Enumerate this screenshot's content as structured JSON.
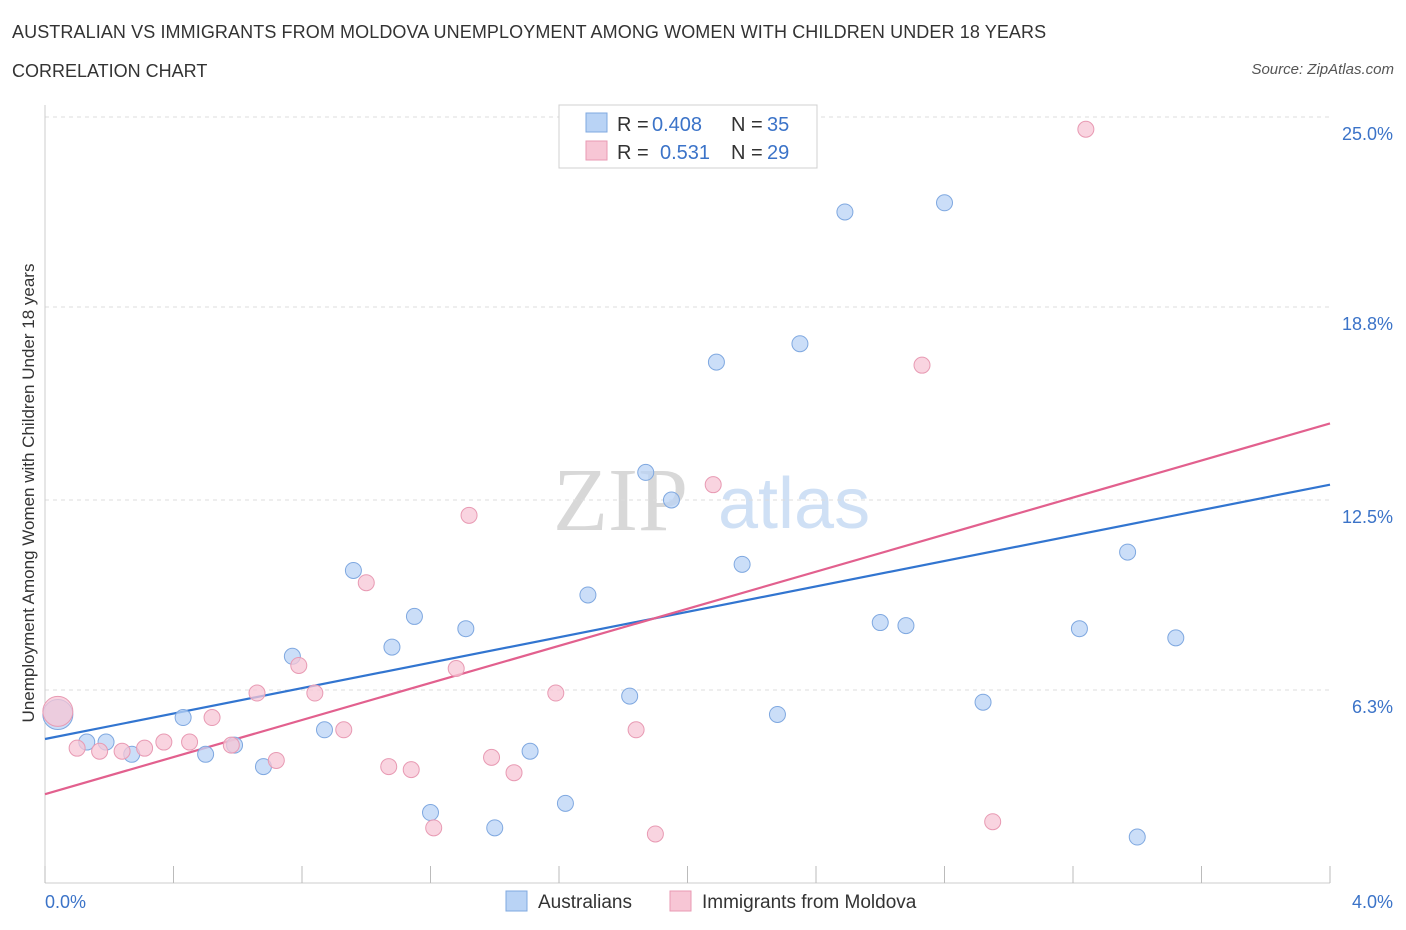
{
  "header": {
    "title": "AUSTRALIAN VS IMMIGRANTS FROM MOLDOVA UNEMPLOYMENT AMONG WOMEN WITH CHILDREN UNDER 18 YEARS",
    "subtitle": "CORRELATION CHART",
    "source": "Source: ZipAtlas.com"
  },
  "watermark": {
    "zip": "ZIP",
    "atlas": "atlas"
  },
  "legend": {
    "row1": {
      "r_label": "R =",
      "r_value": "0.408",
      "n_label": "N =",
      "n_value": "35"
    },
    "row2": {
      "r_label": "R =",
      "r_value": "0.531",
      "n_label": "N =",
      "n_value": "29"
    }
  },
  "bottom_legend": {
    "series1": "Australians",
    "series2": "Immigrants from Moldova"
  },
  "colors": {
    "australians_fill": "#b9d3f5",
    "australians_stroke": "#7fa8e0",
    "australians_line": "#3275d0",
    "moldova_fill": "#f7c6d5",
    "moldova_stroke": "#e89ab3",
    "moldova_line": "#e2608e",
    "value_blue": "#3b73c8"
  },
  "chart_data": {
    "type": "scatter",
    "title": "AUSTRALIAN VS IMMIGRANTS FROM MOLDOVA UNEMPLOYMENT AMONG WOMEN WITH CHILDREN UNDER 18 YEARS",
    "xlabel": "",
    "ylabel": "Unemployment Among Women with Children Under 18 years",
    "xlim": [
      0.0,
      4.0
    ],
    "ylim": [
      0.0,
      25.0
    ],
    "x_tick_labels": [
      "0.0%",
      "4.0%"
    ],
    "y_ticks": [
      6.3,
      12.5,
      18.8,
      25.0
    ],
    "y_tick_labels": [
      "6.3%",
      "12.5%",
      "18.8%",
      "25.0%"
    ],
    "grid": true,
    "legend_position": "top-center",
    "series": [
      {
        "name": "Australians",
        "R": 0.408,
        "N": 35,
        "trend": [
          [
            0.0,
            4.7
          ],
          [
            4.0,
            13.0
          ]
        ],
        "points": [
          [
            0.04,
            5.5
          ],
          [
            0.13,
            4.6
          ],
          [
            0.19,
            4.6
          ],
          [
            0.27,
            4.2
          ],
          [
            0.43,
            5.4
          ],
          [
            0.5,
            4.2
          ],
          [
            0.59,
            4.5
          ],
          [
            0.68,
            3.8
          ],
          [
            0.77,
            7.4
          ],
          [
            0.87,
            5.0
          ],
          [
            0.96,
            10.2
          ],
          [
            1.08,
            7.7
          ],
          [
            1.15,
            8.7
          ],
          [
            1.2,
            2.3
          ],
          [
            1.31,
            8.3
          ],
          [
            1.4,
            1.8
          ],
          [
            1.51,
            4.3
          ],
          [
            1.62,
            2.6
          ],
          [
            1.69,
            9.4
          ],
          [
            1.82,
            6.1
          ],
          [
            1.87,
            13.4
          ],
          [
            1.95,
            12.5
          ],
          [
            2.09,
            17.0
          ],
          [
            2.17,
            10.4
          ],
          [
            2.28,
            5.5
          ],
          [
            2.35,
            17.6
          ],
          [
            2.49,
            21.9
          ],
          [
            2.6,
            8.5
          ],
          [
            2.68,
            8.4
          ],
          [
            2.8,
            22.2
          ],
          [
            2.92,
            5.9
          ],
          [
            3.22,
            8.3
          ],
          [
            3.37,
            10.8
          ],
          [
            3.4,
            1.5
          ],
          [
            3.52,
            8.0
          ]
        ]
      },
      {
        "name": "Immigrants from Moldova",
        "R": 0.531,
        "N": 29,
        "trend": [
          [
            0.0,
            2.9
          ],
          [
            4.0,
            15.0
          ]
        ],
        "points": [
          [
            0.04,
            5.6
          ],
          [
            0.1,
            4.4
          ],
          [
            0.17,
            4.3
          ],
          [
            0.24,
            4.3
          ],
          [
            0.31,
            4.4
          ],
          [
            0.37,
            4.6
          ],
          [
            0.45,
            4.6
          ],
          [
            0.52,
            5.4
          ],
          [
            0.58,
            4.5
          ],
          [
            0.66,
            6.2
          ],
          [
            0.72,
            4.0
          ],
          [
            0.79,
            7.1
          ],
          [
            0.84,
            6.2
          ],
          [
            0.93,
            5.0
          ],
          [
            1.0,
            9.8
          ],
          [
            1.07,
            3.8
          ],
          [
            1.14,
            3.7
          ],
          [
            1.21,
            1.8
          ],
          [
            1.28,
            7.0
          ],
          [
            1.32,
            12.0
          ],
          [
            1.39,
            4.1
          ],
          [
            1.46,
            3.6
          ],
          [
            1.59,
            6.2
          ],
          [
            1.84,
            5.0
          ],
          [
            1.9,
            1.6
          ],
          [
            2.08,
            13.0
          ],
          [
            2.73,
            16.9
          ],
          [
            2.95,
            2.0
          ],
          [
            3.24,
            24.6
          ]
        ]
      }
    ]
  }
}
